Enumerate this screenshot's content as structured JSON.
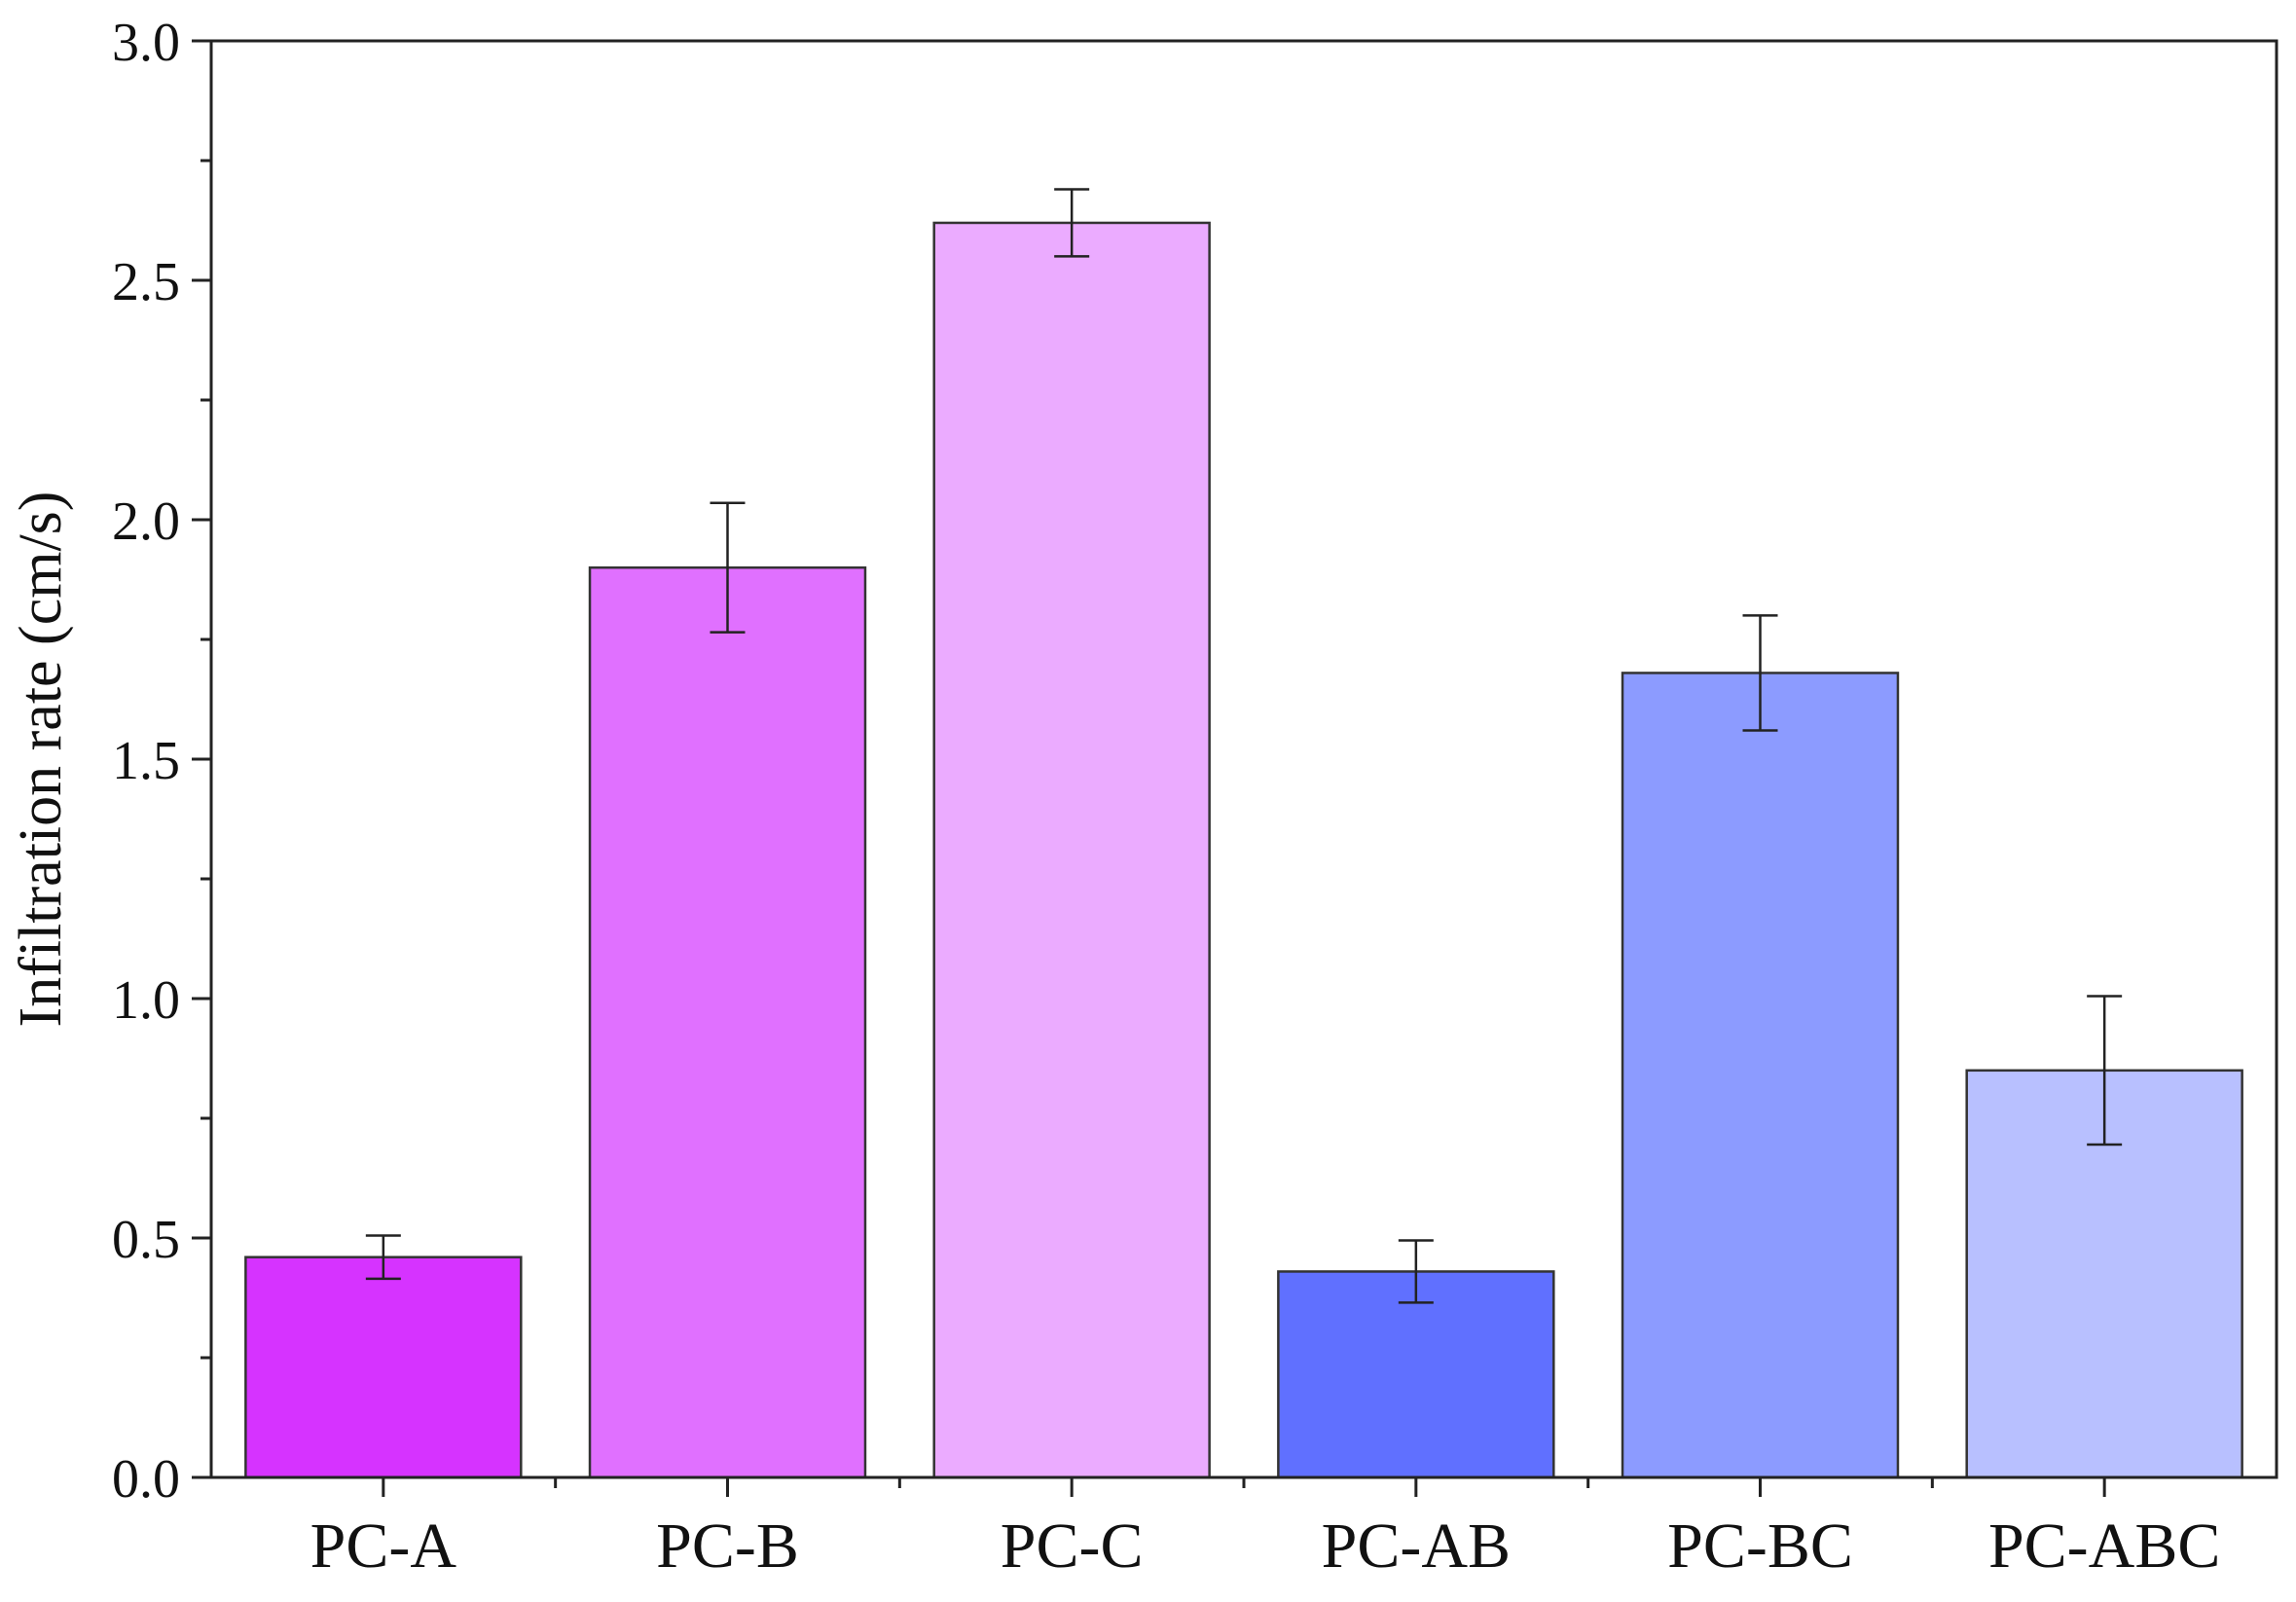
{
  "chart_data": {
    "type": "bar",
    "title": "",
    "xlabel": "",
    "ylabel": "Infiltration rate (cm/s)",
    "ylim": [
      0,
      3.0
    ],
    "yticks": [
      "0.0",
      "0.5",
      "1.0",
      "1.5",
      "2.0",
      "2.5",
      "3.0"
    ],
    "ytick_values": [
      0,
      0.5,
      1.0,
      1.5,
      2.0,
      2.5,
      3.0
    ],
    "y_minor_step": 0.25,
    "grid": false,
    "legend": "none",
    "categories": [
      "PC-A",
      "PC-B",
      "PC-C",
      "PC-AB",
      "PC-BC",
      "PC-ABC"
    ],
    "values": [
      0.46,
      1.9,
      2.62,
      0.43,
      1.68,
      0.85
    ],
    "errors": [
      0.045,
      0.135,
      0.07,
      0.065,
      0.12,
      0.155
    ],
    "colors": [
      "#d633ff",
      "#e070ff",
      "#ebabff",
      "#6070ff",
      "#8c9bff",
      "#b8c0ff"
    ]
  }
}
